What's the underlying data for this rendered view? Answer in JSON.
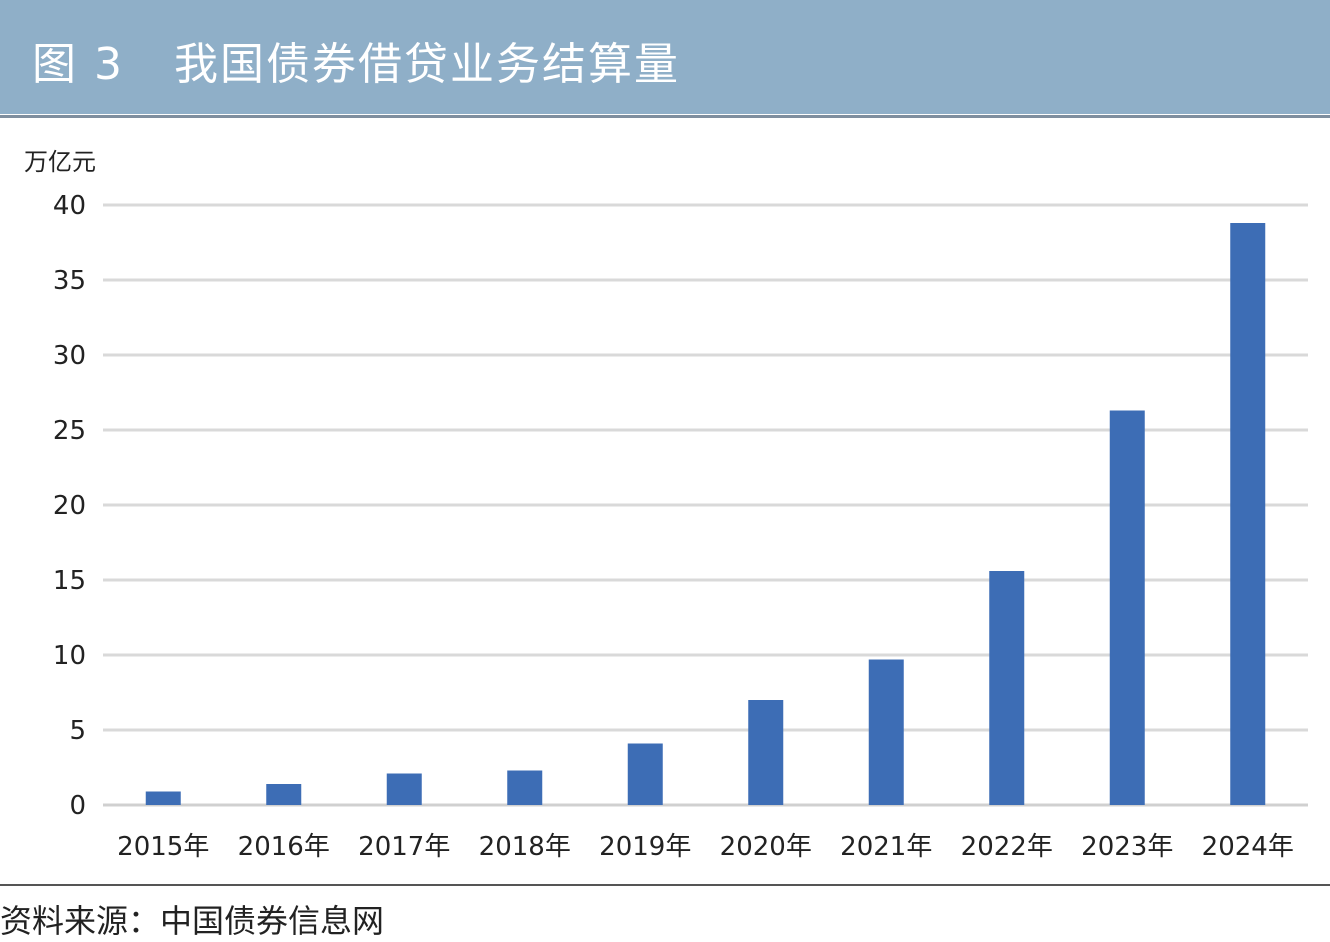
{
  "header": {
    "figure_number": "图 3",
    "title": "我国债券借贷业务结算量"
  },
  "footer": {
    "source": "资料来源：中国债券信息网"
  },
  "colors": {
    "header_bg": "#8fafc8",
    "bar": "#3d6db5",
    "grid": "#d9d9d9"
  },
  "chart_data": {
    "type": "bar",
    "title": "我国债券借贷业务结算量",
    "ylabel": "万亿元",
    "xlabel": "",
    "categories": [
      "2015年",
      "2016年",
      "2017年",
      "2018年",
      "2019年",
      "2020年",
      "2021年",
      "2022年",
      "2023年",
      "2024年"
    ],
    "values": [
      0.9,
      1.4,
      2.1,
      2.3,
      4.1,
      7.0,
      9.7,
      15.6,
      26.3,
      38.8
    ],
    "ylim": [
      0,
      40
    ],
    "yticks": [
      "0",
      "5",
      "10",
      "15",
      "20",
      "25",
      "30",
      "35",
      "40"
    ],
    "grid": true,
    "legend": "none"
  }
}
